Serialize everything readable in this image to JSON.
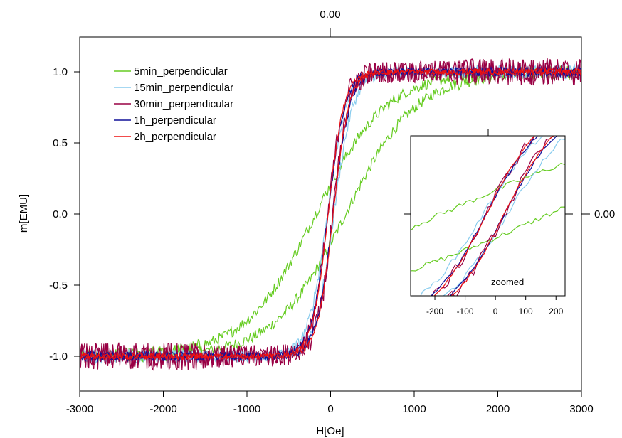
{
  "chart_data": {
    "type": "line",
    "title": "",
    "xlabel": "H[Oe]",
    "ylabel": "m[EMU]",
    "xlim": [
      -3000,
      3000
    ],
    "ylim": [
      -1.25,
      1.25
    ],
    "xticks": [
      "-3000",
      "-2000",
      "-1000",
      "0",
      "1000",
      "2000",
      "3000"
    ],
    "yticks": [
      "-1.0",
      "-0.5",
      "0.0",
      "0.5",
      "1.0"
    ],
    "top_axis_label": "0.00",
    "right_axis_label": "0.00",
    "grid": false,
    "legend_position": "top-left",
    "series": [
      {
        "name": "5min_perpendicular",
        "color": "#66cc22",
        "width_oe": 850,
        "noise": 0.03,
        "hysteresis_oe": 180
      },
      {
        "name": "15min_perpendicular",
        "color": "#88ccee",
        "width_oe": 230,
        "noise": 0.03,
        "hysteresis_oe": 40
      },
      {
        "name": "30min_perpendicular",
        "color": "#990044",
        "width_oe": 190,
        "noise": 0.06,
        "hysteresis_oe": 30
      },
      {
        "name": "1h_perpendicular",
        "color": "#111199",
        "width_oe": 200,
        "noise": 0.02,
        "hysteresis_oe": 30
      },
      {
        "name": "2h_perpendicular",
        "color": "#ee1111",
        "width_oe": 190,
        "noise": 0.015,
        "hysteresis_oe": 30
      }
    ],
    "inset": {
      "annotation": "zoomed",
      "xlim": [
        -280,
        230
      ],
      "xticks": [
        "-200",
        "-100",
        "0",
        "100",
        "200"
      ]
    }
  }
}
